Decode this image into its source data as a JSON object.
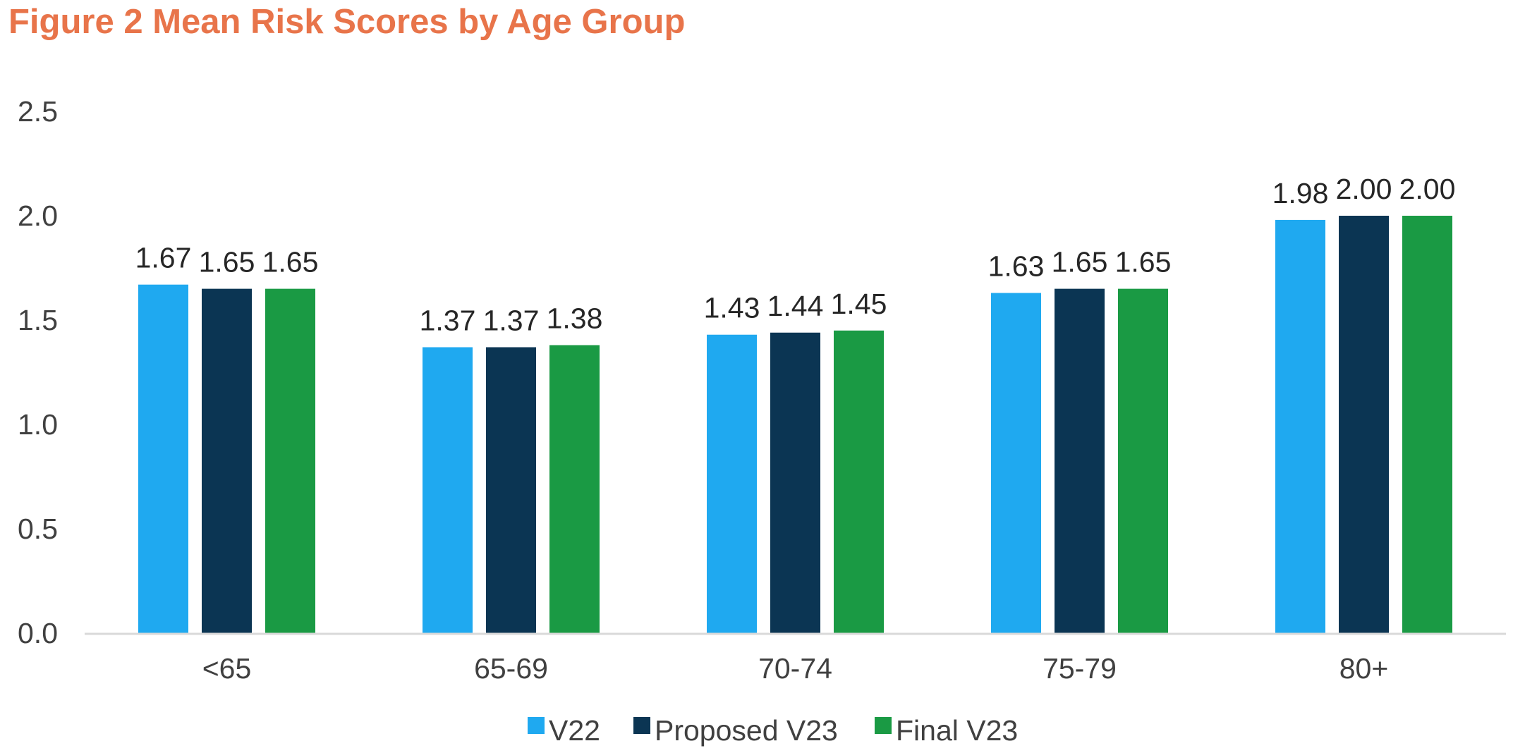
{
  "chart_data": {
    "type": "bar",
    "title": "Figure 2 Mean Risk Scores by Age Group",
    "xlabel": "",
    "ylabel": "",
    "ylim": [
      0,
      2.5
    ],
    "yticks": [
      "0.0",
      "0.5",
      "1.0",
      "1.5",
      "2.0",
      "2.5"
    ],
    "categories": [
      "<65",
      "65-69",
      "70-74",
      "75-79",
      "80+"
    ],
    "series": [
      {
        "name": "V22",
        "color": "#1fa9f0",
        "values": [
          1.67,
          1.37,
          1.43,
          1.63,
          1.98
        ],
        "labels": [
          "1.67",
          "1.37",
          "1.43",
          "1.63",
          "1.98"
        ]
      },
      {
        "name": "Proposed V23",
        "color": "#0b3553",
        "values": [
          1.65,
          1.37,
          1.44,
          1.65,
          2.0
        ],
        "labels": [
          "1.65",
          "1.37",
          "1.44",
          "1.65",
          "2.00"
        ]
      },
      {
        "name": "Final V23",
        "color": "#1a9a44",
        "values": [
          1.65,
          1.38,
          1.45,
          1.65,
          2.0
        ],
        "labels": [
          "1.65",
          "1.38",
          "1.45",
          "1.65",
          "2.00"
        ]
      }
    ],
    "grid": false,
    "legend": "bottom-center",
    "title_color": "#e8744a",
    "axis_color": "#d9d9d9"
  }
}
